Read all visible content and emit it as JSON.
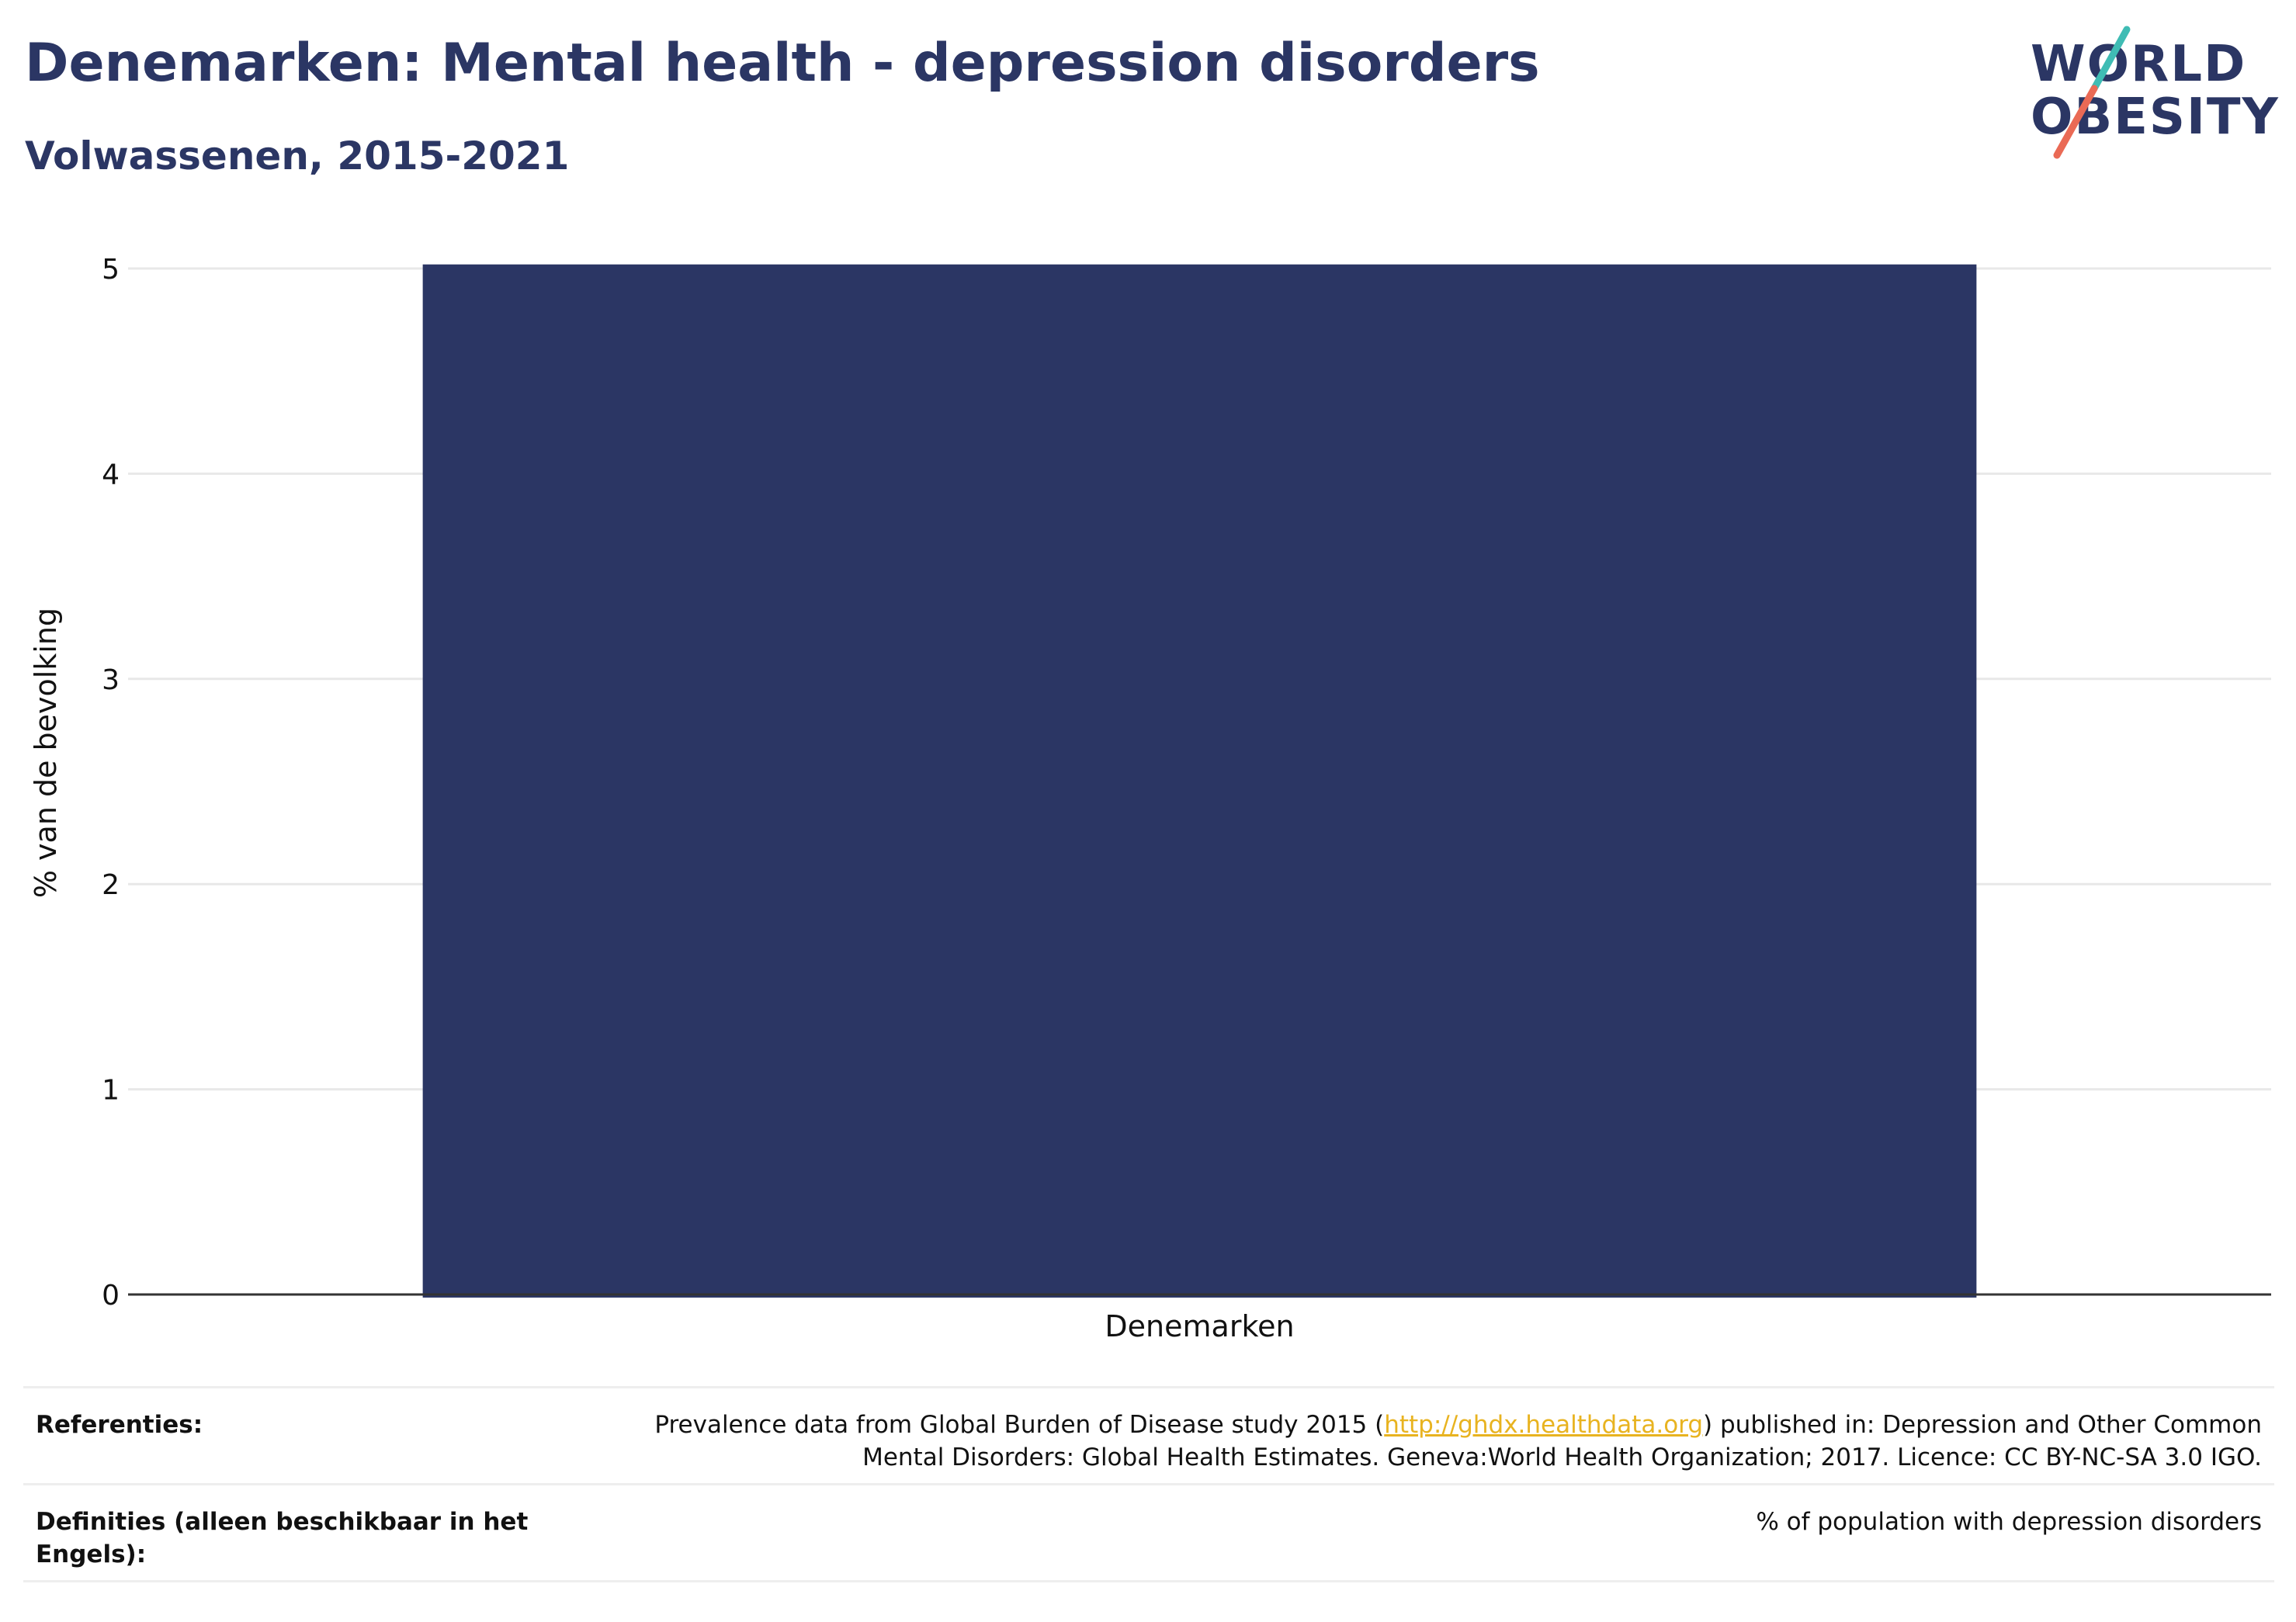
{
  "header": {
    "title": "Denemarken: Mental health - depression disorders",
    "subtitle": "Volwassenen, 2015-2021"
  },
  "logo": {
    "line1": "WORLD",
    "line2": "OBESITY",
    "colors": {
      "text": "#2b3664",
      "slash_top": "#3fbcb4",
      "slash_bottom": "#ea6a55"
    }
  },
  "chart_data": {
    "type": "bar",
    "categories": [
      "Denemarken"
    ],
    "values": [
      5.02
    ],
    "title": "",
    "xlabel": "",
    "ylabel": "% van de bevolking",
    "ylim": [
      0,
      5
    ],
    "yticks": [
      0,
      1,
      2,
      3,
      4,
      5
    ],
    "grid": true,
    "legend": "none",
    "bar_color": "#2b3664"
  },
  "footer": {
    "references_label": "Referenties:",
    "references_text_1": "Prevalence data from Global Burden of Disease study 2015 (",
    "references_link": "http://ghdx.healthdata.org",
    "references_text_2": ") published in: Depression and Other Common",
    "references_text_3": "Mental Disorders: Global Health Estimates. Geneva:World Health Organization; 2017. Licence: CC BY-NC-SA 3.0 IGO.",
    "definitions_label_1": "Definities (alleen beschikbaar in het",
    "definitions_label_2": "Engels):",
    "definitions_text": "% of population with depression disorders"
  }
}
